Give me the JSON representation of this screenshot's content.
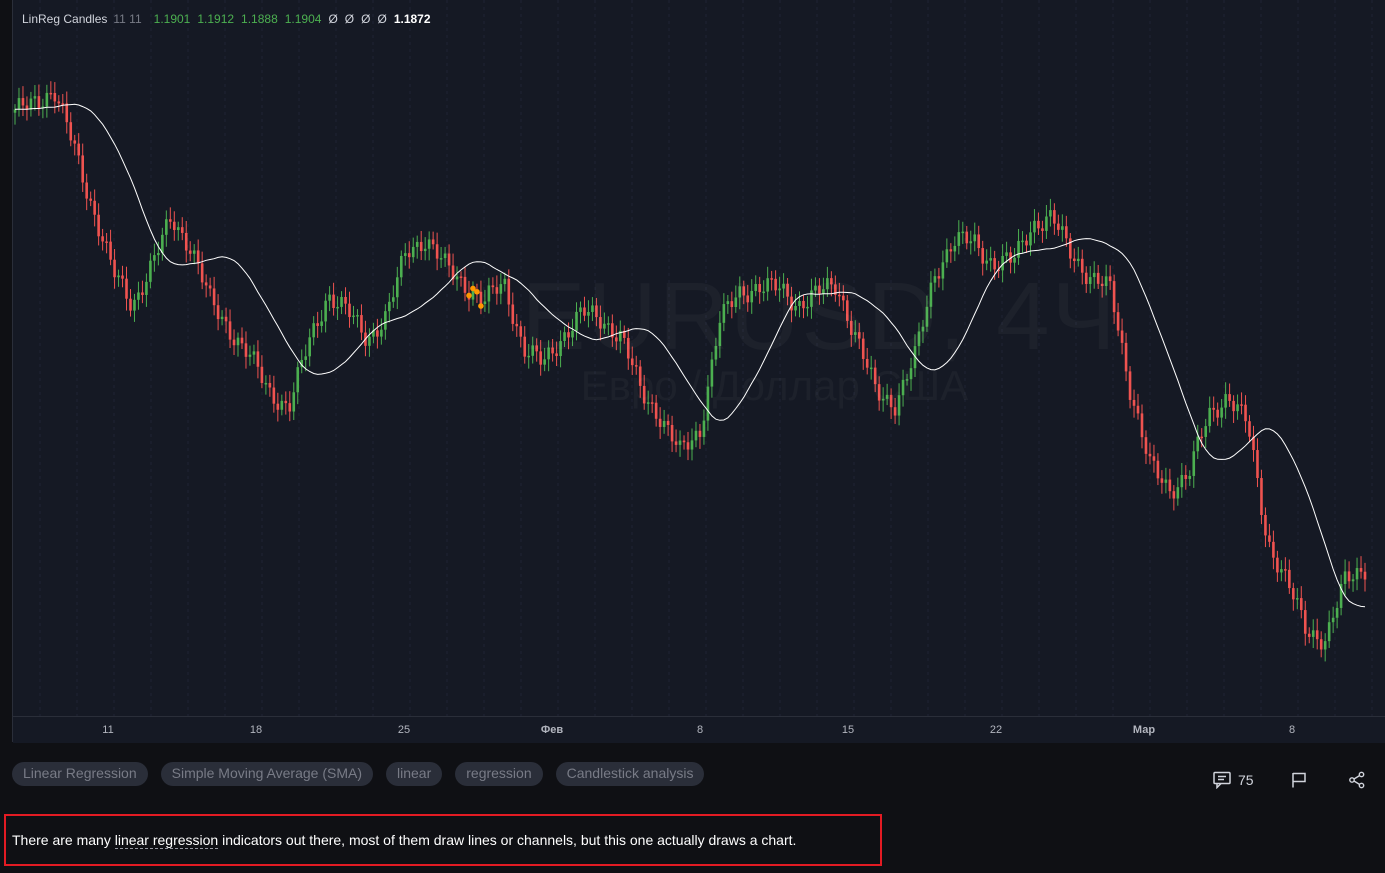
{
  "legend": {
    "name": "LinReg Candles",
    "params": "11 11",
    "values": [
      "1.1901",
      "1.1912",
      "1.1888",
      "1.1904"
    ],
    "placeholders": [
      "Ø",
      "Ø",
      "Ø",
      "Ø"
    ],
    "last": "1.1872"
  },
  "watermark": {
    "symbol": "EURUSD, 4Ч",
    "description": "Евро / Доллар США"
  },
  "time_axis": {
    "ticks": [
      {
        "label": "11",
        "bold": false
      },
      {
        "label": "18",
        "bold": false
      },
      {
        "label": "25",
        "bold": false
      },
      {
        "label": "Фев",
        "bold": true
      },
      {
        "label": "8",
        "bold": false
      },
      {
        "label": "15",
        "bold": false
      },
      {
        "label": "22",
        "bold": false
      },
      {
        "label": "Мар",
        "bold": true
      },
      {
        "label": "8",
        "bold": false
      }
    ]
  },
  "tags": [
    "Linear Regression",
    "Simple Moving Average (SMA)",
    "linear",
    "regression",
    "Candlestick analysis"
  ],
  "actions": {
    "comment_count": "75"
  },
  "description": {
    "before": "There are many ",
    "link": "linear regression",
    "after": " indicators out there, most of them draw lines or channels, but this one actually draws a chart."
  },
  "colors": {
    "up": "#4caf50",
    "down": "#ef5350",
    "sma": "#ffffff",
    "signal": "#ff9800",
    "highlight": "#e31b23"
  },
  "chart_data": {
    "type": "candlestick",
    "symbol": "EURUSD",
    "timeframe": "4Ч",
    "overlay": "smoothed regression line (white)",
    "price_path": [
      1.2309,
      1.2325,
      1.2334,
      1.2272,
      1.2196,
      1.2124,
      1.2086,
      1.2131,
      1.2187,
      1.2153,
      1.2088,
      1.2056,
      1.2025,
      1.1983,
      1.1966,
      1.2039,
      1.2098,
      1.2077,
      1.2046,
      1.2072,
      1.2148,
      1.2163,
      1.213,
      1.2109,
      1.2089,
      1.2111,
      1.2034,
      1.2016,
      1.2049,
      1.2076,
      1.2068,
      1.2048,
      1.1983,
      1.1955,
      1.1912,
      1.1937,
      1.2066,
      1.2098,
      1.2108,
      1.2104,
      1.2086,
      1.2099,
      1.2108,
      1.2047,
      1.1983,
      1.197,
      1.2024,
      1.2123,
      1.2159,
      1.216,
      1.2133,
      1.2136,
      1.218,
      1.2186,
      1.2146,
      1.2116,
      1.2103,
      1.1988,
      1.1897,
      1.1869,
      1.1889,
      1.1954,
      1.1981,
      1.1945,
      1.1811,
      1.1761,
      1.1705,
      1.1694,
      1.1763,
      1.1779
    ]
  }
}
